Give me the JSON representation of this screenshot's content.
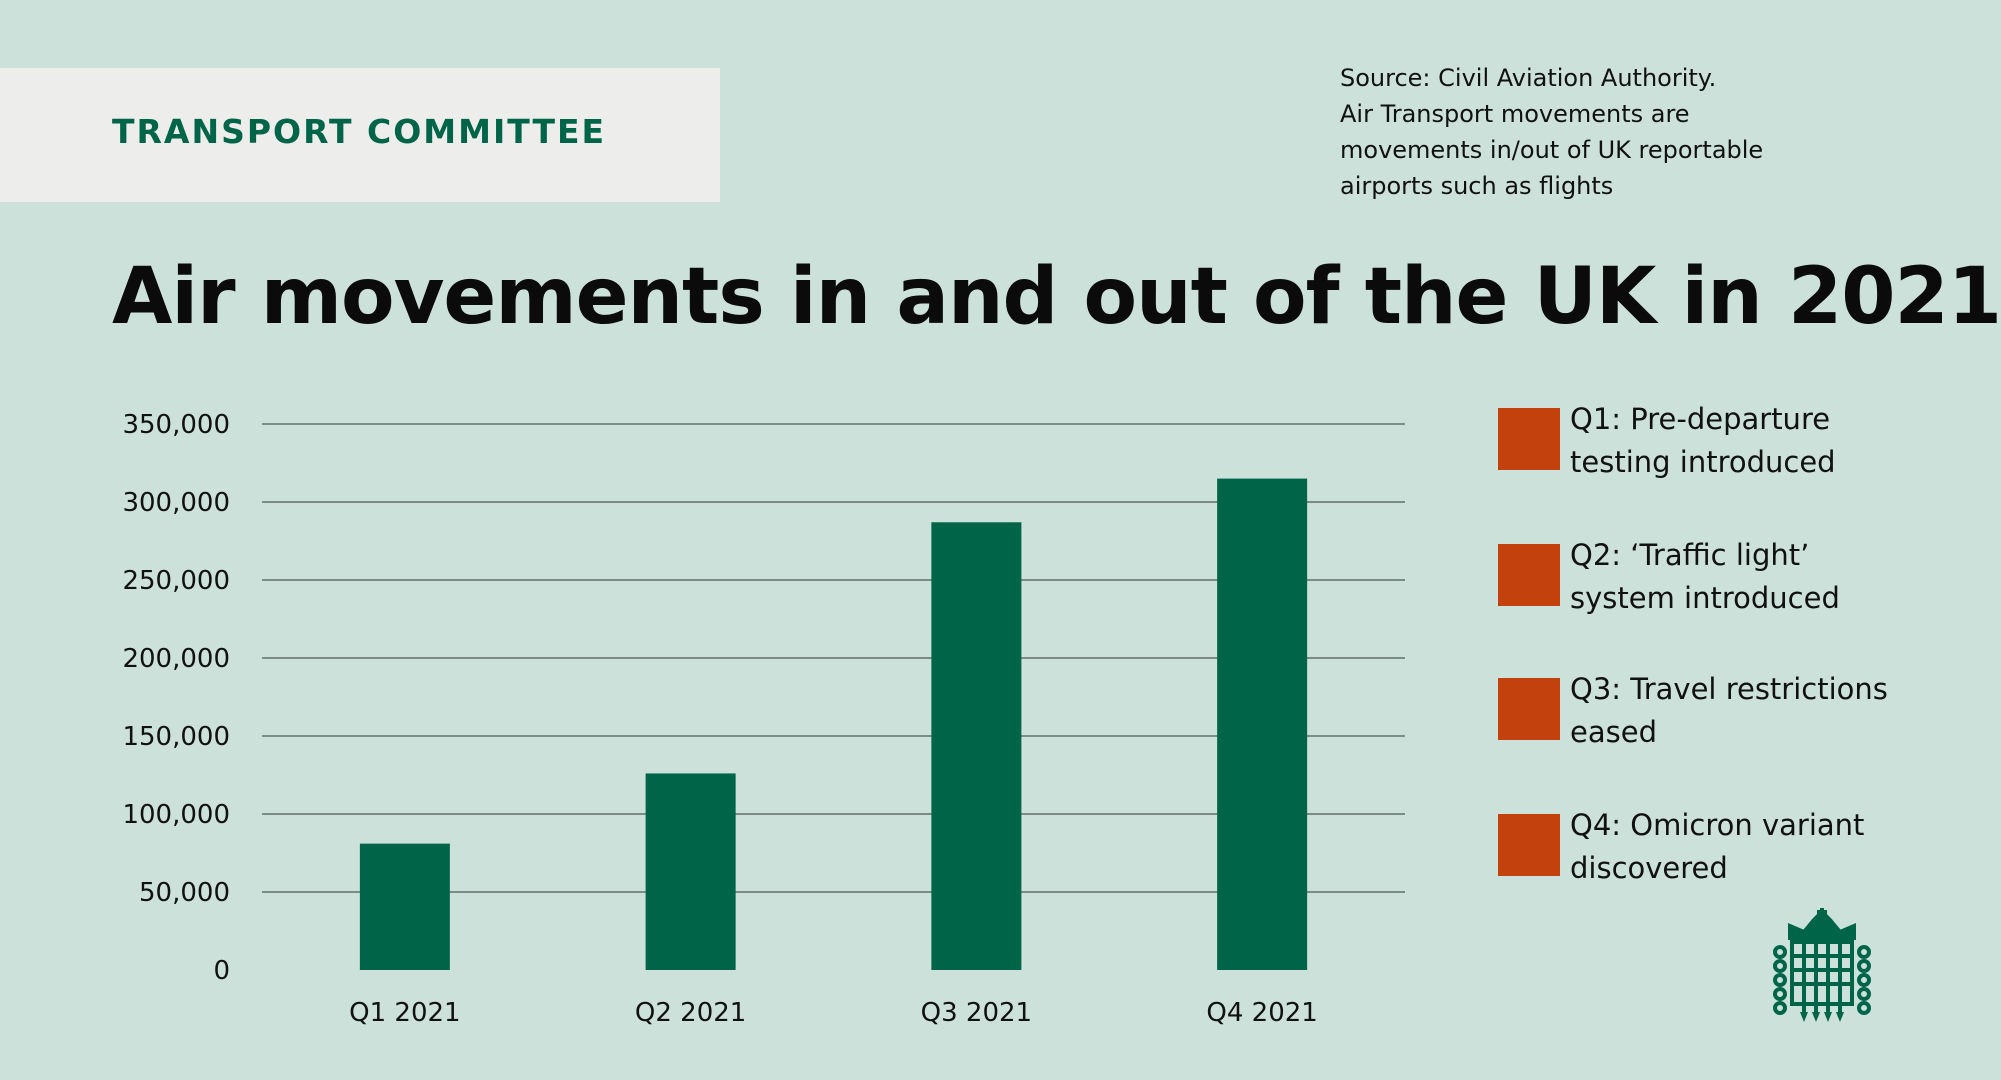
{
  "header": {
    "committee": "TRANSPORT COMMITTEE"
  },
  "source_note": {
    "lines": [
      "Source: Civil Aviation Authority.",
      "Air Transport movements are",
      "movements in/out of UK reportable",
      "airports such as flights"
    ]
  },
  "legend": {
    "items": [
      {
        "label": "Q1: Pre-departure testing introduced"
      },
      {
        "label": "Q2: ‘Traffic light’ system introduced"
      },
      {
        "label": "Q3: Travel restrictions eased"
      },
      {
        "label": "Q4: Omicron variant discovered"
      }
    ]
  },
  "colors": {
    "background": "#cce1da",
    "bar": "#006548",
    "legend_swatch": "#c2410c",
    "brand": "#006548",
    "header_band": "#ededeb"
  },
  "logo": {
    "icon": "portcullis-icon"
  },
  "chart_data": {
    "type": "bar",
    "title": "Air movements in and out of the UK in 2021",
    "categories": [
      "Q1 2021",
      "Q2 2021",
      "Q3 2021",
      "Q4 2021"
    ],
    "values": [
      81000,
      126000,
      287000,
      315000
    ],
    "xlabel": "",
    "ylabel": "",
    "ylim": [
      0,
      350000
    ],
    "yticks": [
      0,
      50000,
      100000,
      150000,
      200000,
      250000,
      300000,
      350000
    ],
    "ytick_labels": [
      "0",
      "50,000",
      "100,000",
      "150,000",
      "200,000",
      "250,000",
      "300,000",
      "350,000"
    ],
    "grid": true,
    "legend_position": "right"
  }
}
